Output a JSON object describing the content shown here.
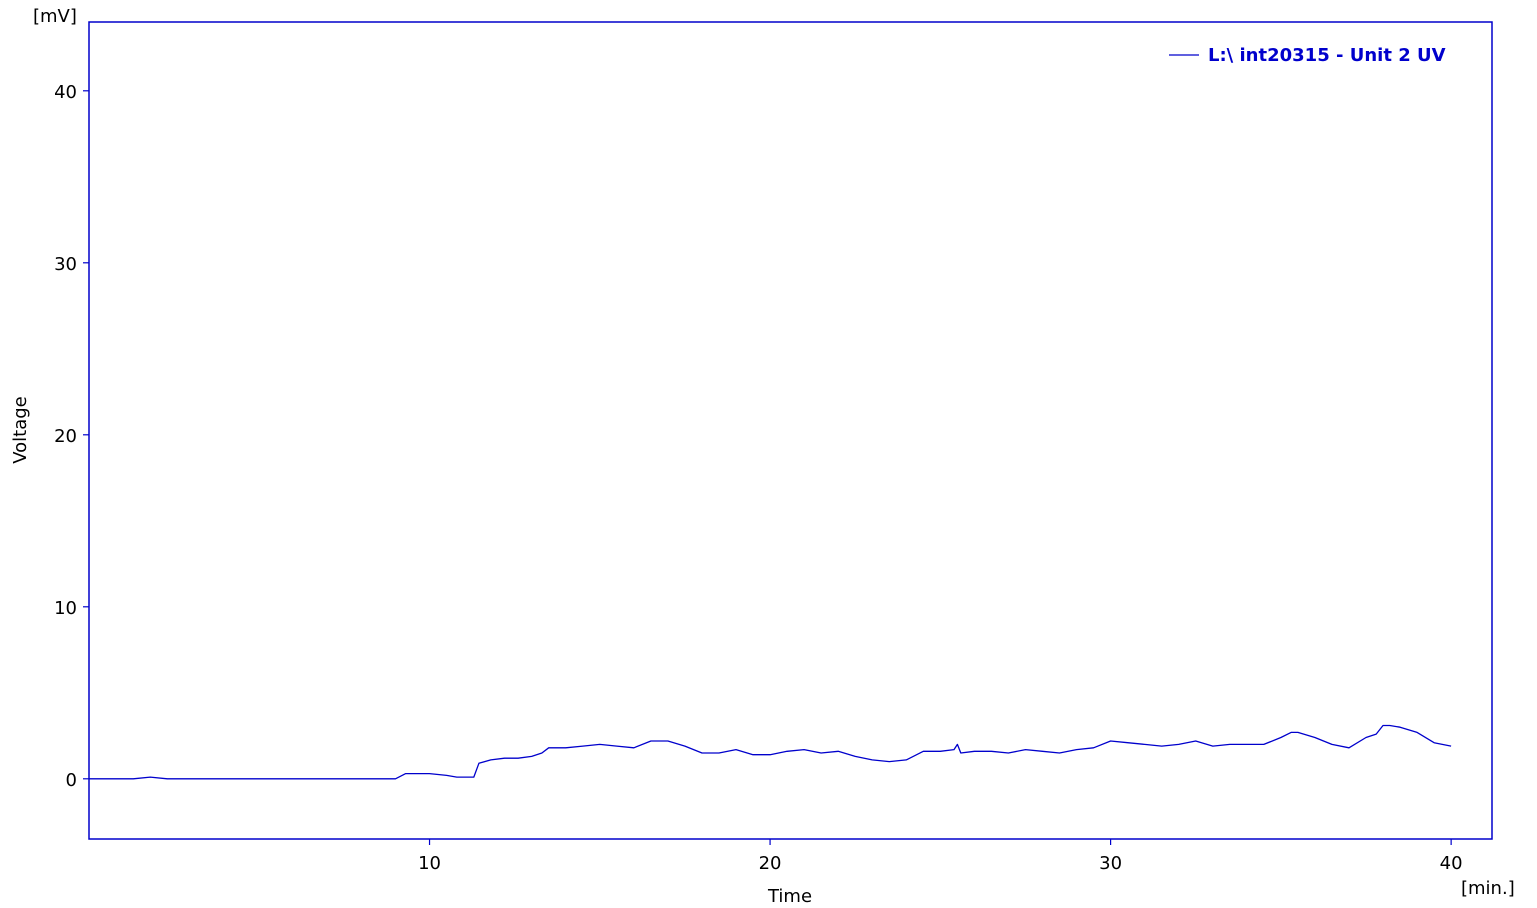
{
  "chart_data": {
    "type": "line",
    "xlabel": "Time",
    "x_unit": "[min.]",
    "ylabel": "Voltage",
    "y_unit": "[mV]",
    "xlim": [
      0,
      41.2
    ],
    "ylim": [
      -3.5,
      44
    ],
    "xticks": [
      10,
      20,
      30,
      40
    ],
    "yticks": [
      0,
      10,
      20,
      30,
      40
    ],
    "grid": false,
    "legend_position": "top-right",
    "colors": {
      "series": "#0000cc",
      "frame": "#0000cc",
      "text": "#000000"
    },
    "series": [
      {
        "name": "L:\\ int20315 - Unit 2 UV",
        "x": [
          0,
          1.3,
          1.8,
          2.3,
          4.5,
          6.2,
          8.0,
          9.0,
          9.3,
          10.0,
          10.5,
          10.8,
          11.3,
          11.45,
          11.8,
          12.2,
          12.6,
          13.0,
          13.3,
          13.5,
          14.0,
          14.5,
          15.0,
          15.5,
          16.0,
          16.5,
          17.0,
          17.5,
          18.0,
          18.5,
          19.0,
          19.5,
          20.0,
          20.5,
          21.0,
          21.5,
          22.0,
          22.5,
          23.0,
          23.5,
          24.0,
          24.5,
          25.0,
          25.4,
          25.5,
          25.6,
          26.0,
          26.5,
          27.0,
          27.5,
          28.0,
          28.5,
          29.0,
          29.5,
          30.0,
          30.5,
          31.0,
          31.5,
          32.0,
          32.5,
          33.0,
          33.5,
          34.0,
          34.5,
          35.0,
          35.3,
          35.5,
          36.0,
          36.5,
          37.0,
          37.5,
          37.8,
          38.0,
          38.2,
          38.5,
          39.0,
          39.5,
          40.0
        ],
        "y": [
          0.0,
          0.0,
          0.1,
          0.0,
          0.0,
          0.0,
          0.0,
          0.0,
          0.3,
          0.3,
          0.2,
          0.1,
          0.1,
          0.9,
          1.1,
          1.2,
          1.2,
          1.3,
          1.5,
          1.8,
          1.8,
          1.9,
          2.0,
          1.9,
          1.8,
          2.2,
          2.2,
          1.9,
          1.5,
          1.5,
          1.7,
          1.4,
          1.4,
          1.6,
          1.7,
          1.5,
          1.6,
          1.3,
          1.1,
          1.0,
          1.1,
          1.6,
          1.6,
          1.7,
          2.0,
          1.5,
          1.6,
          1.6,
          1.5,
          1.7,
          1.6,
          1.5,
          1.7,
          1.8,
          2.2,
          2.1,
          2.0,
          1.9,
          2.0,
          2.2,
          1.9,
          2.0,
          2.0,
          2.0,
          2.4,
          2.7,
          2.7,
          2.4,
          2.0,
          1.8,
          2.4,
          2.6,
          3.1,
          3.1,
          3.0,
          2.7,
          2.1,
          1.9
        ]
      }
    ]
  }
}
